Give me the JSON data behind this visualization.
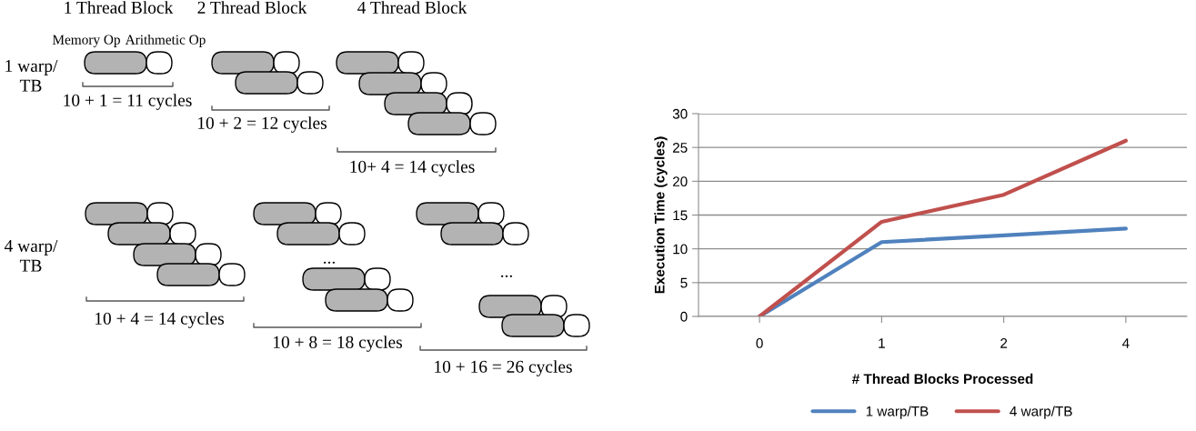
{
  "chart_data": [
    {
      "type": "other",
      "annotations": [
        "1 Thread Block",
        "2 Thread Block",
        "4 Thread Block",
        "Memory Op",
        "Arithmetic Op",
        "1 warp/\nTB",
        "4 warp/\nTB",
        "10 + 1 = 11 cycles",
        "10 + 2 = 12 cycles",
        "10+ 4 = 14 cycles",
        "10 + 4 = 14 cycles",
        "10 + 8 = 18 cycles",
        "10 + 16 = 26 cycles",
        "...",
        "..."
      ]
    },
    {
      "type": "line",
      "xlabel": "# Thread Blocks Processed",
      "ylabel": "Execution Time (cycles)",
      "categories": [
        "0",
        "1",
        "2",
        "4"
      ],
      "ylim": [
        0,
        30
      ],
      "yticks": [
        0,
        5,
        10,
        15,
        20,
        25,
        30
      ],
      "grid": "y",
      "legend": "bottom",
      "marker": "none",
      "line_style": "solid",
      "series": [
        {
          "name": "1 warp/TB",
          "color": "#4f81bd",
          "values": [
            0,
            11,
            12,
            13
          ]
        },
        {
          "name": "4 warp/TB",
          "color": "#c0504d",
          "values": [
            0,
            14,
            18,
            26
          ]
        }
      ]
    }
  ]
}
